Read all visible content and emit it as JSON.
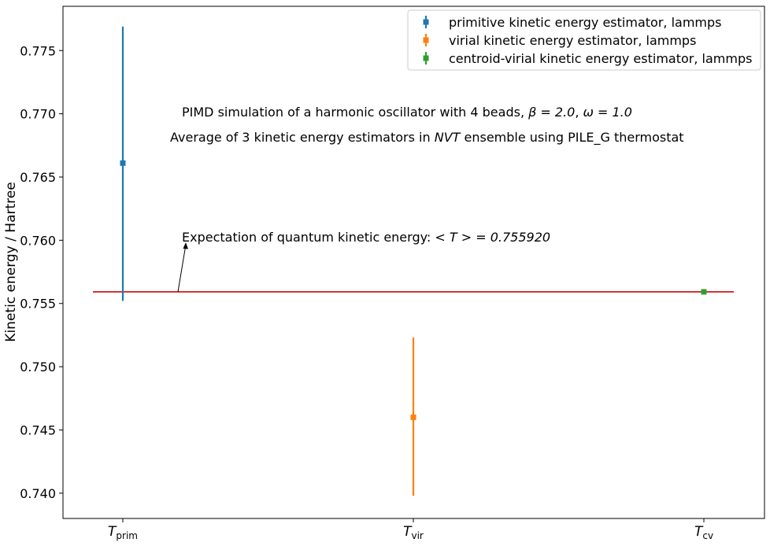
{
  "chart_data": {
    "type": "scatter",
    "title": "",
    "xlabel": "",
    "ylabel": "Kinetic energy / Hartree",
    "ylim": [
      0.738,
      0.7785
    ],
    "yticks": [
      0.74,
      0.745,
      0.75,
      0.755,
      0.76,
      0.765,
      0.77,
      0.775
    ],
    "ytick_labels": [
      "0.740",
      "0.745",
      "0.750",
      "0.755",
      "0.760",
      "0.765",
      "0.770",
      "0.775"
    ],
    "categories": [
      {
        "base": "T",
        "sub": "prim"
      },
      {
        "base": "T",
        "sub": "vir"
      },
      {
        "base": "T",
        "sub": "cv"
      }
    ],
    "grid": false,
    "legend_placement": "top-right",
    "series": [
      {
        "name": "primitive kinetic energy estimator, lammps",
        "color": "#1f77b4",
        "category": 0,
        "value": 0.7661,
        "err_low": 0.7552,
        "err_high": 0.7769
      },
      {
        "name": "virial kinetic energy estimator, lammps",
        "color": "#ff7f0e",
        "category": 1,
        "value": 0.746,
        "err_low": 0.7398,
        "err_high": 0.7523
      },
      {
        "name": "centroid-virial kinetic energy estimator, lammps",
        "color": "#2ca02c",
        "category": 2,
        "value": 0.75592,
        "err_low": 0.75592,
        "err_high": 0.75592
      }
    ],
    "reference_line": {
      "value": 0.75592,
      "color": "#d62728"
    },
    "annotations": {
      "line1": {
        "prefix": "PIMD simulation of a harmonic oscillator with 4 beads, ",
        "beta": "β = 2.0",
        "sep": ", ",
        "omega": "ω = 1.0"
      },
      "line2": {
        "prefix": "Average of 3 kinetic energy estimators in ",
        "ensemble": "NVT",
        "suffix": " ensemble using PILE_G thermostat"
      },
      "expectation": {
        "prefix": "Expectation of quantum kinetic energy: ",
        "math": "< T > = 0.755920"
      }
    }
  }
}
